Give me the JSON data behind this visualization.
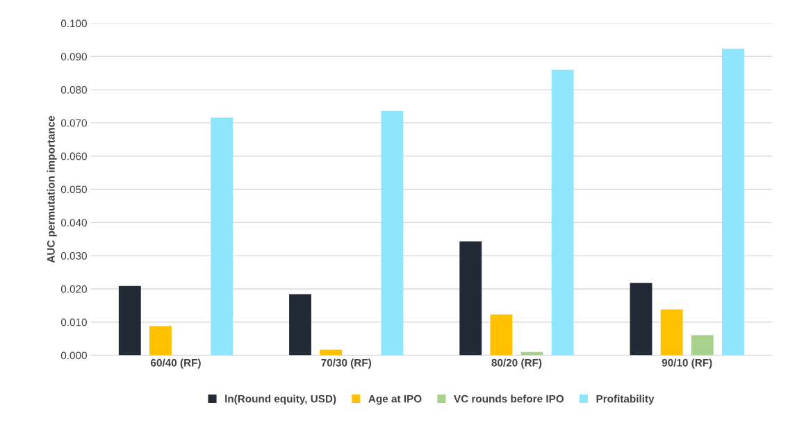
{
  "chart_data": {
    "type": "bar",
    "ylabel": "AUC permutation importance",
    "categories": [
      "60/40 (RF)",
      "70/30 (RF)",
      "80/20 (RF)",
      "90/10 (RF)"
    ],
    "series": [
      {
        "name": "ln(Round equity, USD)",
        "color": "#222a35",
        "values": [
          0.0209,
          0.0184,
          0.0343,
          0.0218
        ]
      },
      {
        "name": "Age at IPO",
        "color": "#ffc000",
        "values": [
          0.0088,
          0.0017,
          0.0123,
          0.0138
        ]
      },
      {
        "name": "VC rounds before IPO",
        "color": "#a9d18e",
        "values": [
          0.0,
          0.0,
          0.001,
          0.0061
        ]
      },
      {
        "name": "Profitability",
        "color": "#8fe5fb",
        "values": [
          0.0716,
          0.0736,
          0.086,
          0.0923
        ]
      }
    ],
    "ylim": [
      0,
      0.1
    ],
    "yticks": [
      {
        "value": 0,
        "label": "0.000"
      },
      {
        "value": 0.01,
        "label": "0.010"
      },
      {
        "value": 0.02,
        "label": "0.020"
      },
      {
        "value": 0.03,
        "label": "0.030"
      },
      {
        "value": 0.04,
        "label": "0.040"
      },
      {
        "value": 0.05,
        "label": "0.050"
      },
      {
        "value": 0.06,
        "label": "0.060"
      },
      {
        "value": 0.07,
        "label": "0.070"
      },
      {
        "value": 0.08,
        "label": "0.080"
      },
      {
        "value": 0.09,
        "label": "0.090"
      },
      {
        "value": 0.1,
        "label": "0.100"
      }
    ],
    "grid": "y",
    "legend": "bottom"
  }
}
